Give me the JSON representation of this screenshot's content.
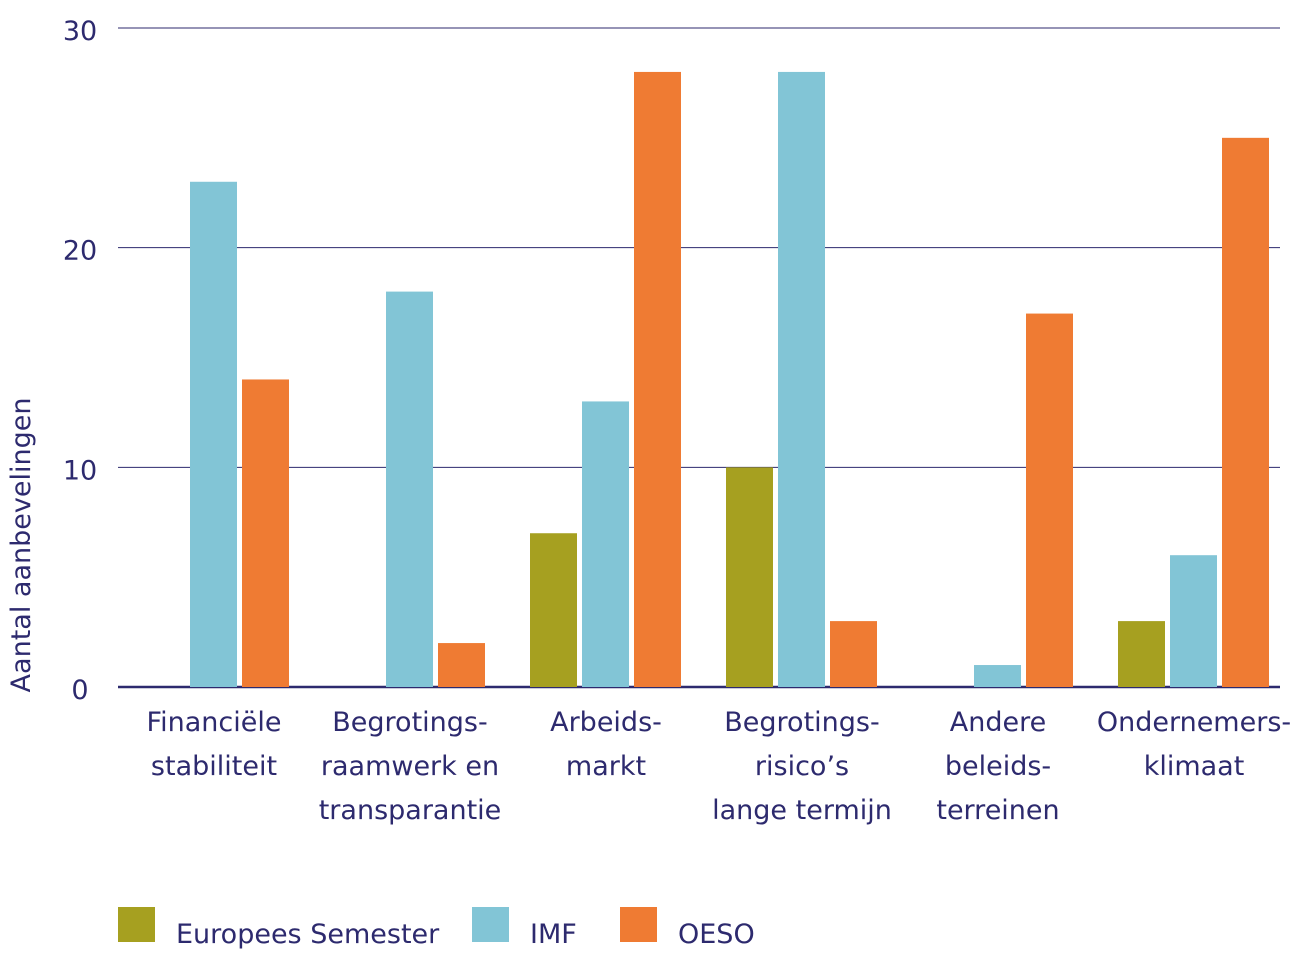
{
  "chart_data": {
    "type": "bar",
    "title": "",
    "xlabel": "",
    "ylabel": "Aantal aanbevelingen",
    "ylim": [
      0,
      30
    ],
    "yticks": [
      "0",
      "10",
      "20",
      "30"
    ],
    "grid": true,
    "legend_position": "bottom-left",
    "categories": [
      [
        "Financiële",
        "stabiliteit"
      ],
      [
        "Begrotings-",
        "raamwerk en",
        "transparantie"
      ],
      [
        "Arbeids-",
        "markt"
      ],
      [
        "Begrotings-",
        "risico’s",
        "lange termijn"
      ],
      [
        "Andere",
        "beleids-",
        "terreinen"
      ],
      [
        "Ondernemers-",
        "klimaat"
      ]
    ],
    "series": [
      {
        "name": "Europees Semester",
        "color": "#a6a020",
        "values": [
          0,
          0,
          7,
          10,
          0,
          3
        ]
      },
      {
        "name": "IMF",
        "color": "#82c5d6",
        "values": [
          23,
          18,
          13,
          28,
          1,
          6
        ]
      },
      {
        "name": "OESO",
        "color": "#ef7b33",
        "values": [
          14,
          2,
          28,
          3,
          17,
          25
        ]
      }
    ],
    "axis_color": "#2d2a6e"
  }
}
